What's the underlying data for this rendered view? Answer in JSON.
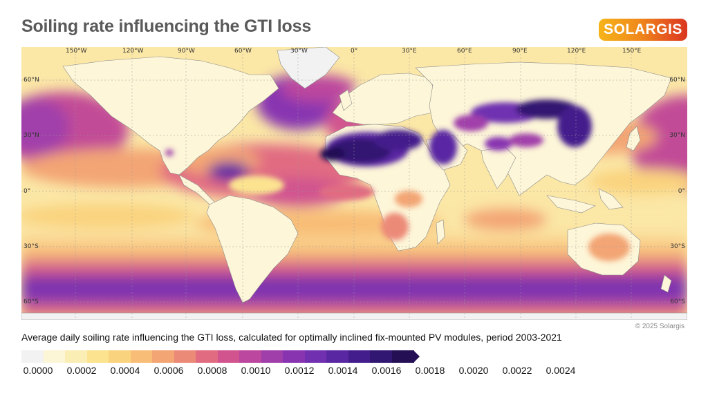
{
  "title": "Soiling rate influencing the GTI loss",
  "logo_text": "SOLARGIS",
  "copyright": "© 2025 Solargis",
  "caption": "Average daily soiling rate influencing the GTI loss, calculated for optimally inclined fix-mounted PV modules, period 2003-2021",
  "map": {
    "longitude_labels": [
      "150°W",
      "120°W",
      "90°W",
      "60°W",
      "30°W",
      "0°",
      "30°E",
      "60°E",
      "90°E",
      "120°E",
      "150°E"
    ],
    "latitude_labels_left": [
      "60°N",
      "30°N",
      "0°",
      "30°S",
      "60°S"
    ],
    "latitude_labels_right": [
      "60°N",
      "30°N",
      "0°",
      "30°S",
      "60°S"
    ],
    "colors": {
      "ocean_base": "#fbe7a6",
      "land_base": "#fdf7d8"
    }
  },
  "legend": {
    "colors": [
      "#f2f2f2",
      "#fcf5d6",
      "#fbeeb4",
      "#fbe390",
      "#fad37e",
      "#f8be77",
      "#f3a574",
      "#ec8a78",
      "#e16c82",
      "#d1548f",
      "#bb479e",
      "#a13faa",
      "#8834b1",
      "#7030b0",
      "#5a27a3",
      "#441d8c",
      "#311771",
      "#240f54"
    ],
    "ticks": [
      "0.0000",
      "0.0002",
      "0.0004",
      "0.0006",
      "0.0008",
      "0.0010",
      "0.0012",
      "0.0014",
      "0.0016",
      "0.0018",
      "0.0020",
      "0.0022",
      "0.0024"
    ],
    "unit": ""
  }
}
